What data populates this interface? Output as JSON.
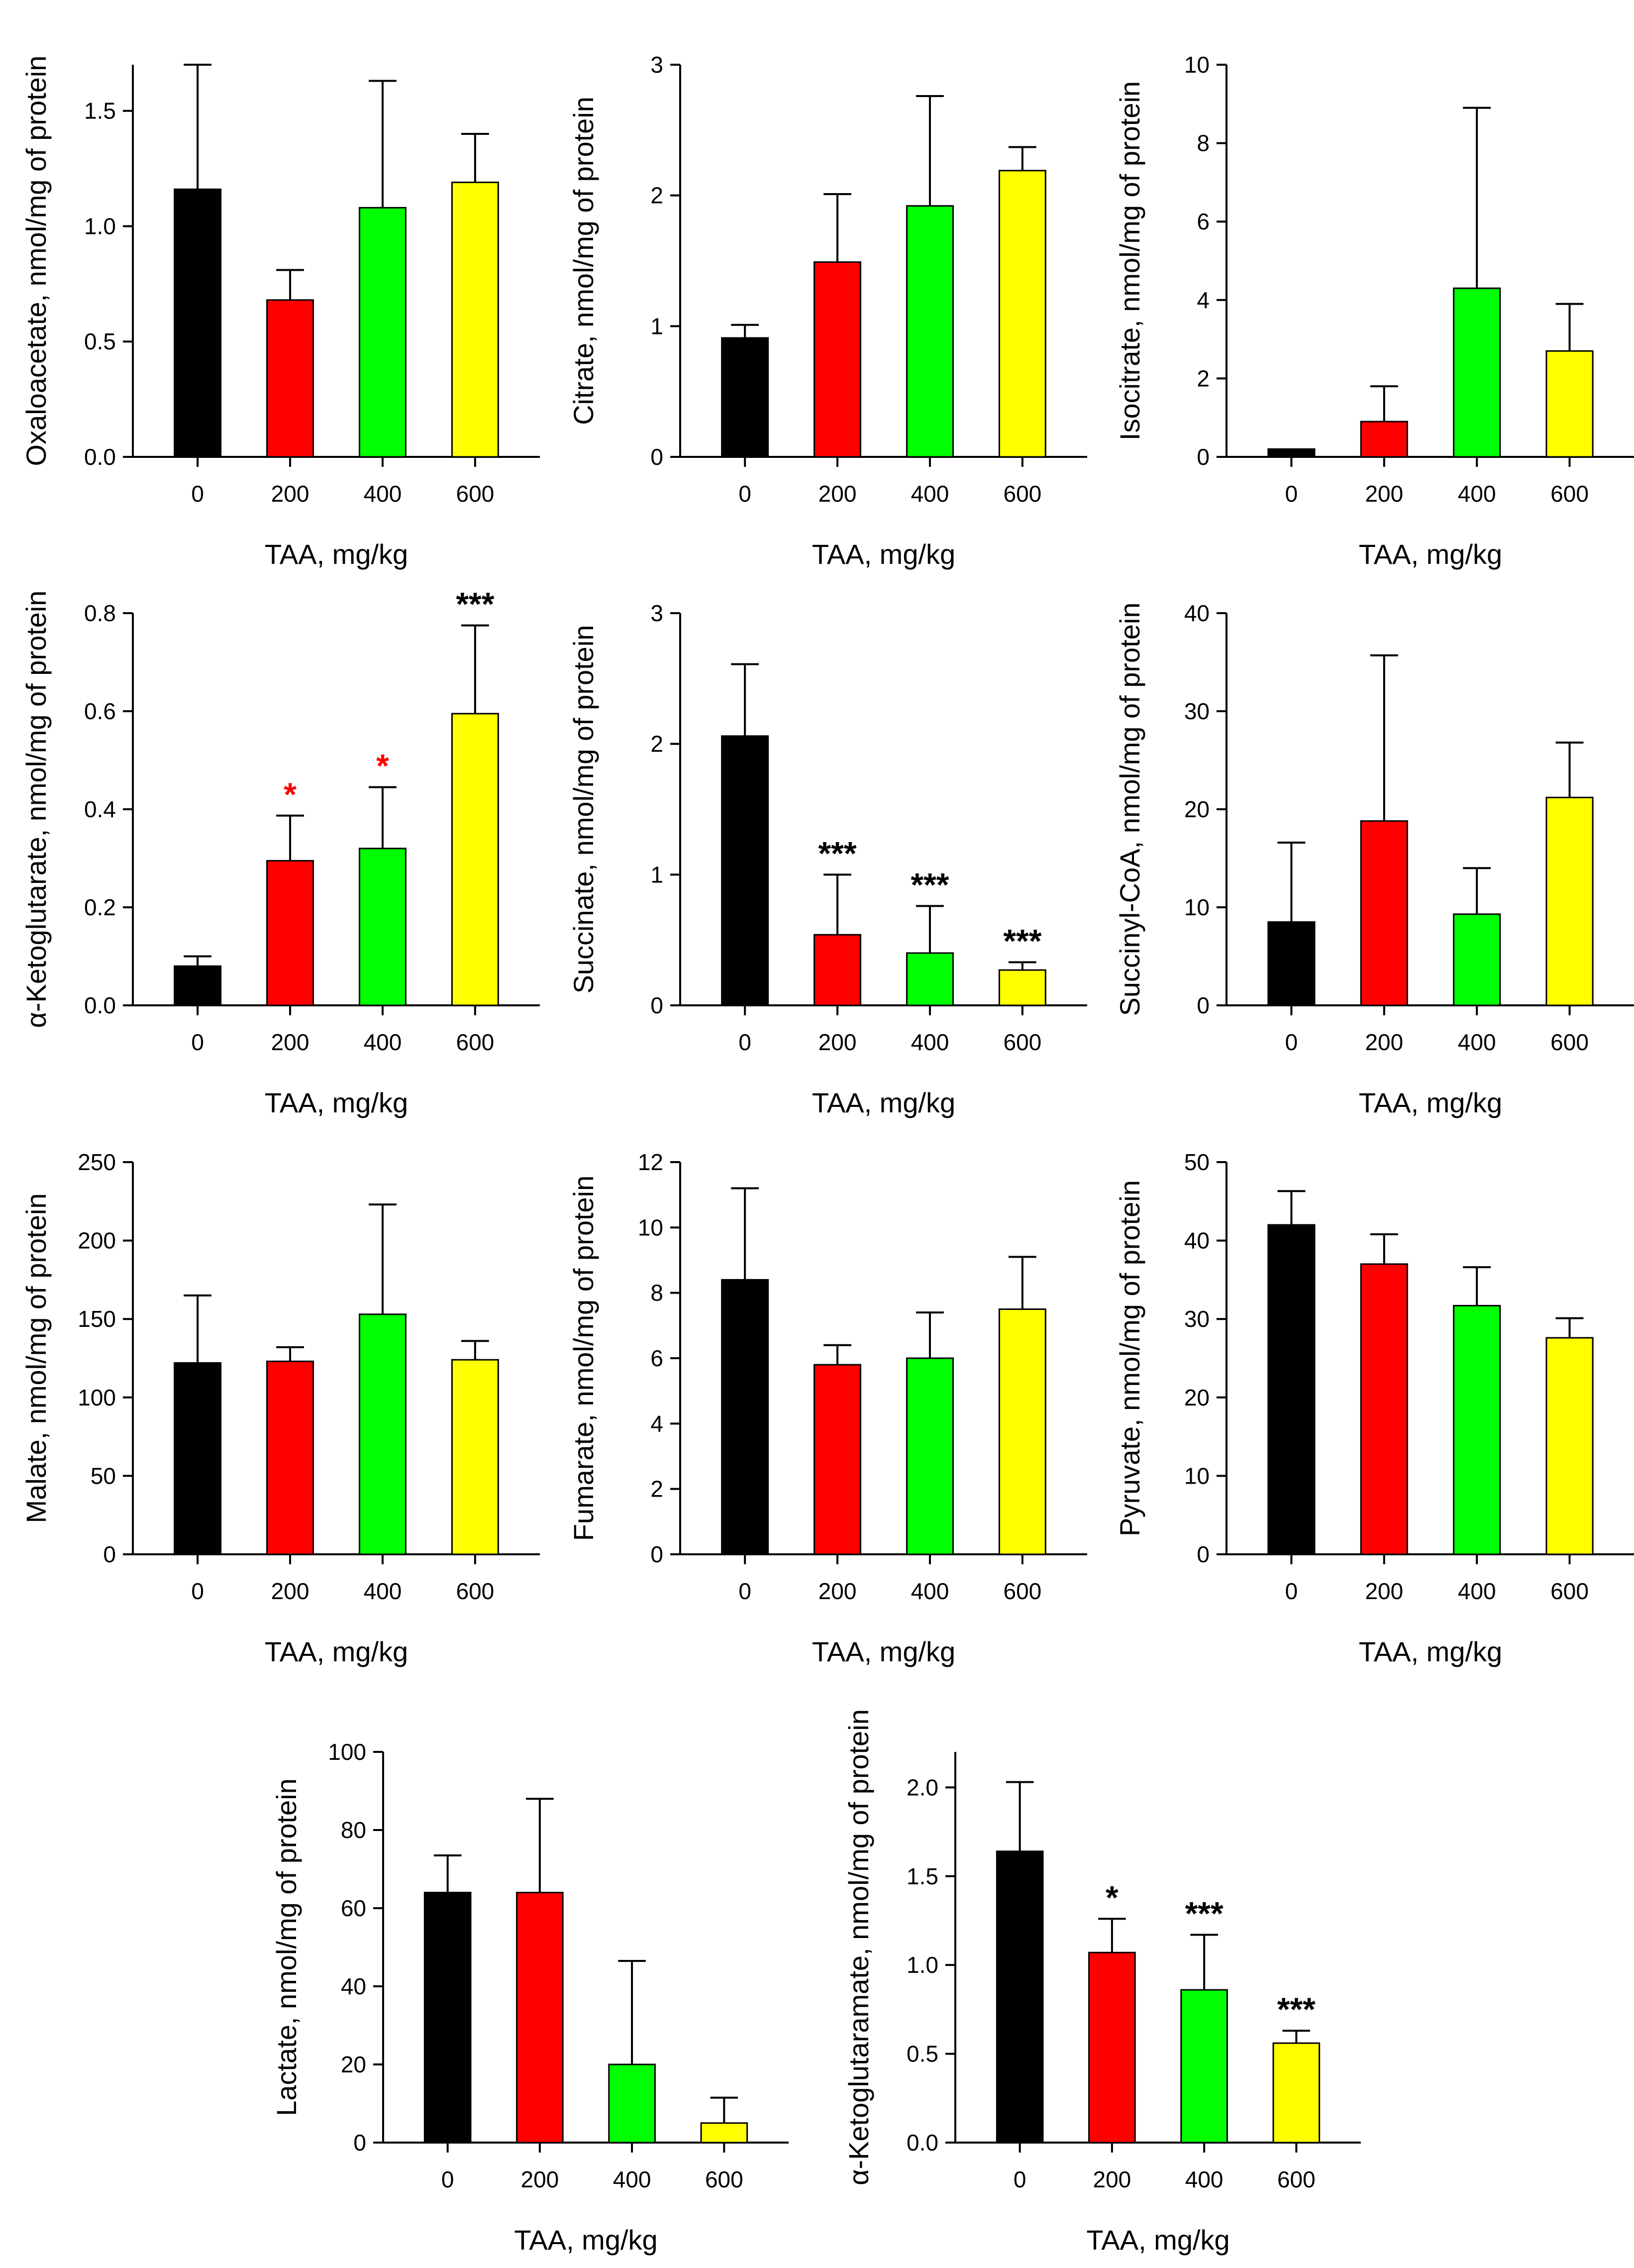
{
  "colors": {
    "axis": "#000000",
    "bar_outline": "#000000",
    "sig_black": "#000000",
    "sig_red": "#ff0000",
    "group_colors": [
      "#000000",
      "#ff0000",
      "#00ff00",
      "#ffff00"
    ]
  },
  "chart_data": [
    {
      "type": "bar",
      "ylabel": "Oxaloacetate, nmol/mg of protein",
      "xlabel": "TAA, mg/kg",
      "categories": [
        "0",
        "200",
        "400",
        "600"
      ],
      "values": [
        1.16,
        0.68,
        1.08,
        1.19
      ],
      "errors": [
        0.54,
        0.13,
        0.55,
        0.21
      ],
      "ylim": [
        0,
        1.7
      ],
      "yticks": [
        0.0,
        0.5,
        1.0,
        1.5
      ],
      "yticklabels": [
        "0.0",
        "0.5",
        "1.0",
        "1.5"
      ],
      "significance": [
        "",
        "",
        "",
        ""
      ],
      "significance_colors": [
        "black",
        "black",
        "black",
        "black"
      ]
    },
    {
      "type": "bar",
      "ylabel": "Citrate, nmol/mg of protein",
      "xlabel": "TAA, mg/kg",
      "categories": [
        "0",
        "200",
        "400",
        "600"
      ],
      "values": [
        0.91,
        1.49,
        1.92,
        2.19
      ],
      "errors": [
        0.1,
        0.52,
        0.84,
        0.18
      ],
      "ylim": [
        0,
        3
      ],
      "yticks": [
        0,
        1,
        2,
        3
      ],
      "yticklabels": [
        "0",
        "1",
        "2",
        "3"
      ],
      "significance": [
        "",
        "",
        "",
        ""
      ],
      "significance_colors": [
        "black",
        "black",
        "black",
        "black"
      ]
    },
    {
      "type": "bar",
      "ylabel": "Isocitrate, nmol/mg of protein",
      "xlabel": "TAA, mg/kg",
      "categories": [
        "0",
        "200",
        "400",
        "600"
      ],
      "values": [
        0.2,
        0.9,
        4.3,
        2.7
      ],
      "errors": [
        0.0,
        0.9,
        4.6,
        1.2
      ],
      "ylim": [
        0,
        10
      ],
      "yticks": [
        0,
        2,
        4,
        6,
        8,
        10
      ],
      "yticklabels": [
        "0",
        "2",
        "4",
        "6",
        "8",
        "10"
      ],
      "significance": [
        "",
        "",
        "",
        ""
      ],
      "significance_colors": [
        "black",
        "black",
        "black",
        "black"
      ]
    },
    {
      "type": "bar",
      "ylabel": "α-Ketoglutarate, nmol/mg of protein",
      "xlabel": "TAA, mg/kg",
      "categories": [
        "0",
        "200",
        "400",
        "600"
      ],
      "values": [
        0.08,
        0.295,
        0.32,
        0.595
      ],
      "errors": [
        0.02,
        0.092,
        0.125,
        0.18
      ],
      "ylim": [
        0,
        0.8
      ],
      "yticks": [
        0.0,
        0.2,
        0.4,
        0.6,
        0.8
      ],
      "yticklabels": [
        "0.0",
        "0.2",
        "0.4",
        "0.6",
        "0.8"
      ],
      "significance": [
        "",
        "*",
        "*",
        "***"
      ],
      "significance_colors": [
        "black",
        "red",
        "red",
        "black"
      ]
    },
    {
      "type": "bar",
      "ylabel": "Succinate, nmol/mg of protein",
      "xlabel": "TAA, mg/kg",
      "categories": [
        "0",
        "200",
        "400",
        "600"
      ],
      "values": [
        2.06,
        0.54,
        0.4,
        0.27
      ],
      "errors": [
        0.55,
        0.46,
        0.36,
        0.06
      ],
      "ylim": [
        0,
        3
      ],
      "yticks": [
        0,
        1,
        2,
        3
      ],
      "yticklabels": [
        "0",
        "1",
        "2",
        "3"
      ],
      "significance": [
        "",
        "***",
        "***",
        "***"
      ],
      "significance_colors": [
        "black",
        "black",
        "black",
        "black"
      ]
    },
    {
      "type": "bar",
      "ylabel": "Succinyl-CoA, nmol/mg of protein",
      "xlabel": "TAA, mg/kg",
      "categories": [
        "0",
        "200",
        "400",
        "600"
      ],
      "values": [
        8.5,
        18.8,
        9.3,
        21.2
      ],
      "errors": [
        8.1,
        16.9,
        4.7,
        5.6
      ],
      "ylim": [
        0,
        40
      ],
      "yticks": [
        0,
        10,
        20,
        30,
        40
      ],
      "yticklabels": [
        "0",
        "10",
        "20",
        "30",
        "40"
      ],
      "significance": [
        "",
        "",
        "",
        ""
      ],
      "significance_colors": [
        "black",
        "black",
        "black",
        "black"
      ]
    },
    {
      "type": "bar",
      "ylabel": "Malate, nmol/mg of protein",
      "xlabel": "TAA, mg/kg",
      "categories": [
        "0",
        "200",
        "400",
        "600"
      ],
      "values": [
        122,
        123,
        153,
        124
      ],
      "errors": [
        43,
        9,
        70,
        12
      ],
      "ylim": [
        0,
        250
      ],
      "yticks": [
        0,
        50,
        100,
        150,
        200,
        250
      ],
      "yticklabels": [
        "0",
        "50",
        "100",
        "150",
        "200",
        "250"
      ],
      "significance": [
        "",
        "",
        "",
        ""
      ],
      "significance_colors": [
        "black",
        "black",
        "black",
        "black"
      ]
    },
    {
      "type": "bar",
      "ylabel": "Fumarate, nmol/mg of protein",
      "xlabel": "TAA, mg/kg",
      "categories": [
        "0",
        "200",
        "400",
        "600"
      ],
      "values": [
        8.4,
        5.8,
        6.0,
        7.5
      ],
      "errors": [
        2.8,
        0.6,
        1.4,
        1.6
      ],
      "ylim": [
        0,
        12
      ],
      "yticks": [
        0,
        2,
        4,
        6,
        8,
        10,
        12
      ],
      "yticklabels": [
        "0",
        "2",
        "4",
        "6",
        "8",
        "10",
        "12"
      ],
      "significance": [
        "",
        "",
        "",
        ""
      ],
      "significance_colors": [
        "black",
        "black",
        "black",
        "black"
      ]
    },
    {
      "type": "bar",
      "ylabel": "Pyruvate, nmol/mg of protein",
      "xlabel": "TAA, mg/kg",
      "categories": [
        "0",
        "200",
        "400",
        "600"
      ],
      "values": [
        42.0,
        37.0,
        31.7,
        27.6
      ],
      "errors": [
        4.3,
        3.8,
        4.9,
        2.5
      ],
      "ylim": [
        0,
        50
      ],
      "yticks": [
        0,
        10,
        20,
        30,
        40,
        50
      ],
      "yticklabels": [
        "0",
        "10",
        "20",
        "30",
        "40",
        "50"
      ],
      "significance": [
        "",
        "",
        "",
        ""
      ],
      "significance_colors": [
        "black",
        "black",
        "black",
        "black"
      ]
    },
    {
      "type": "bar",
      "ylabel": "Lactate, nmol/mg of protein",
      "xlabel": "TAA, mg/kg",
      "categories": [
        "0",
        "200",
        "400",
        "600"
      ],
      "values": [
        64,
        64,
        20,
        5
      ],
      "errors": [
        9.5,
        24,
        26.5,
        6.5
      ],
      "ylim": [
        0,
        100
      ],
      "yticks": [
        0,
        20,
        40,
        60,
        80,
        100
      ],
      "yticklabels": [
        "0",
        "20",
        "40",
        "60",
        "80",
        "100"
      ],
      "significance": [
        "",
        "",
        "",
        ""
      ],
      "significance_colors": [
        "black",
        "black",
        "black",
        "black"
      ]
    },
    {
      "type": "bar",
      "ylabel": "α-Ketoglutaramate, nmol/mg of protein",
      "xlabel": "TAA, mg/kg",
      "categories": [
        "0",
        "200",
        "400",
        "600"
      ],
      "values": [
        1.64,
        1.07,
        0.86,
        0.56
      ],
      "errors": [
        0.39,
        0.19,
        0.31,
        0.07
      ],
      "ylim": [
        0,
        2.2
      ],
      "yticks": [
        0.0,
        0.5,
        1.0,
        1.5,
        2.0
      ],
      "yticklabels": [
        "0.0",
        "0.5",
        "1.0",
        "1.5",
        "2.0"
      ],
      "significance": [
        "",
        "*",
        "***",
        "***"
      ],
      "significance_colors": [
        "black",
        "black",
        "black",
        "black"
      ]
    }
  ]
}
